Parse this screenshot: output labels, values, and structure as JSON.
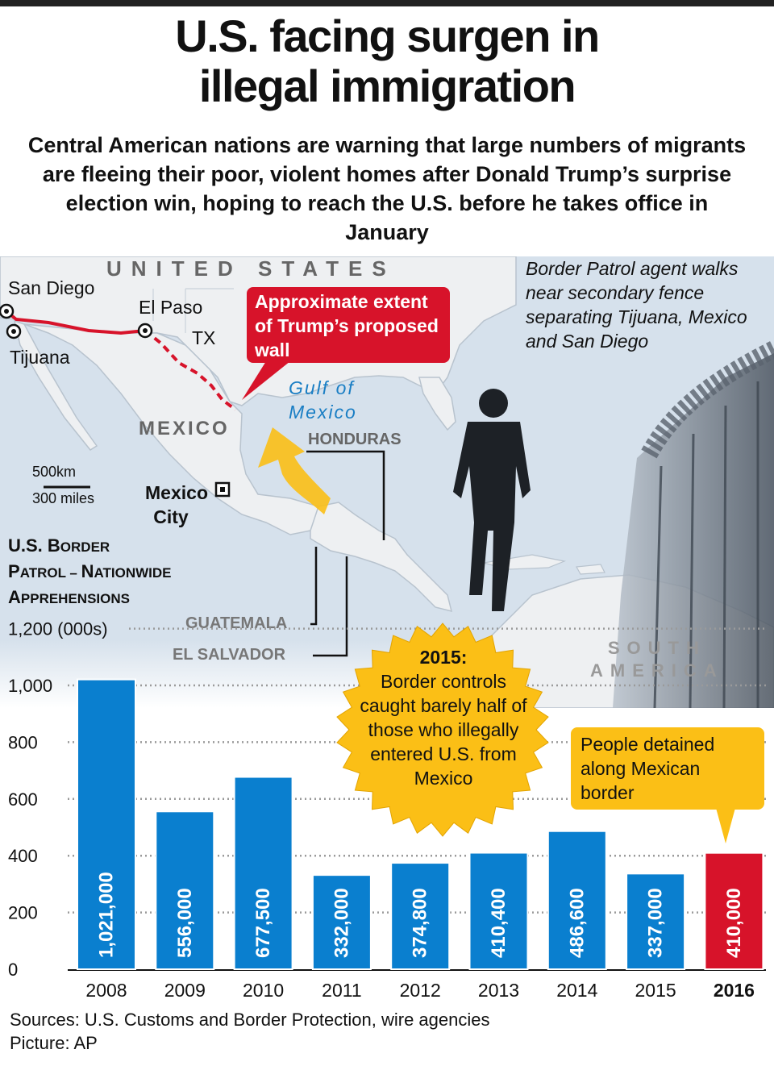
{
  "headline": {
    "line1": "U.S. facing surgen in",
    "line2": "illegal immigration"
  },
  "subheadline": "Central American nations are warning that large numbers of migrants are fleeing their poor, violent homes after Donald Trump’s surprise election win, hoping to reach the U.S. before he takes office in January",
  "map": {
    "united_states": "UNITED STATES",
    "san_diego": "San Diego",
    "tijuana": "Tijuana",
    "el_paso": "El Paso",
    "tx": "TX",
    "mexico": "MEXICO",
    "gulf_line1": "Gulf of",
    "gulf_line2": "Mexico",
    "honduras": "HONDURAS",
    "mexico_city_line1": "Mexico",
    "mexico_city_line2": "City",
    "scale_km": "500km",
    "scale_miles": "300 miles",
    "guatemala": "GUATEMALA",
    "el_salvador": "EL SALVADOR",
    "south_line1": "SOUTH",
    "south_line2": "AMERICA",
    "wall_callout": "Approximate extent of Trump’s proposed wall",
    "colors": {
      "wall": "#d7132a",
      "land": "#eef0f2",
      "sea": "#cfdbe8"
    }
  },
  "photo": {
    "caption": "Border Patrol agent walks near secondary fence separating Tijuana, Mexico and San Diego"
  },
  "chart_title": {
    "line1_a": "U.S. B",
    "line1_b": "ORDER",
    "line2_a": "P",
    "line2_b": "ATROL – ",
    "line2_c": "N",
    "line2_d": "ATIONWIDE",
    "line3_a": "A",
    "line3_b": "PPREHENSIONS"
  },
  "burst": {
    "year": "2015:",
    "text": "Border controls caught barely half of those who illegally entered U.S. from Mexico"
  },
  "detained_callout": "People detained along Mexican border",
  "sources": {
    "line1": "Sources: U.S. Customs and Border Protection, wire agencies",
    "line2": "Picture: AP"
  },
  "chart_data": {
    "type": "bar",
    "title": "U.S. BORDER PATROL – NATIONWIDE APPREHENSIONS",
    "unit_label": "(000s)",
    "categories": [
      "2008",
      "2009",
      "2010",
      "2011",
      "2012",
      "2013",
      "2014",
      "2015",
      "2016"
    ],
    "values": [
      1021000,
      556000,
      677500,
      332000,
      374800,
      410400,
      486600,
      337000,
      410000
    ],
    "value_labels": [
      "1,021,000",
      "556,000",
      "677,500",
      "332,000",
      "374,800",
      "410,400",
      "486,600",
      "337,000",
      "410,000"
    ],
    "yticks": [
      0,
      200,
      400,
      600,
      800,
      1000,
      1200
    ],
    "ytick_labels": [
      "0",
      "200",
      "400",
      "600",
      "800",
      "1,000",
      "1,200 (000s)"
    ],
    "ylim": [
      0,
      1200000
    ],
    "grid": true,
    "highlight_category": "2016",
    "colors": {
      "bar": "#0a7fcf",
      "highlight": "#d7132a",
      "grid": "#9a9a9a"
    }
  }
}
